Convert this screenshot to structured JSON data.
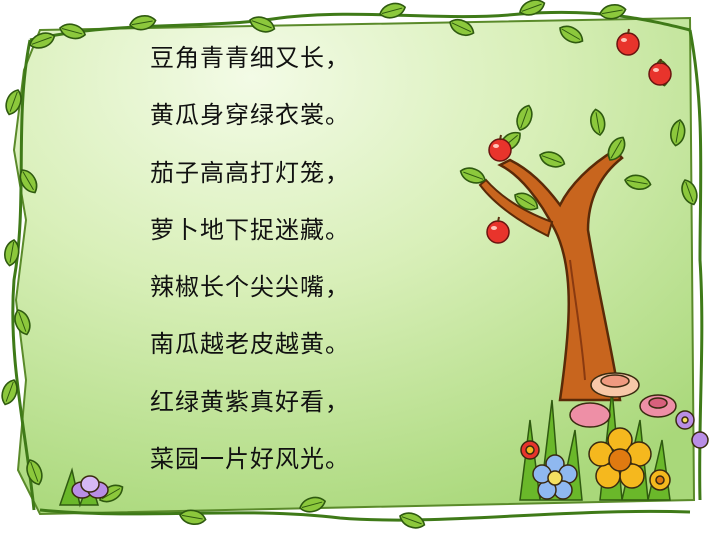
{
  "poem": {
    "lines": [
      "豆角青青细又长，",
      "黄瓜身穿绿衣裳。",
      "茄子高高打灯笼，",
      "萝卜地下捉迷藏。",
      "辣椒长个尖尖嘴，",
      "南瓜越老皮越黄。",
      "红绿黄紫真好看，",
      "菜园一片好风光。"
    ]
  },
  "colors": {
    "panel_light": "#f3fbe6",
    "panel_green": "#b8e08c",
    "leaf": "#8cc83c",
    "leaf_dark": "#2f6b12",
    "trunk": "#c8651e",
    "apple": "#e8342c",
    "flower_yellow": "#f5b81e",
    "flower_pink": "#ee8fa6",
    "flower_blue": "#8fb8f0",
    "flower_purple": "#b98ee6"
  },
  "decorations": {
    "border_icon": "leaf-vine-border-icon",
    "tree_icon": "apple-tree-icon",
    "flowers_icon": "flower-bush-icon"
  }
}
